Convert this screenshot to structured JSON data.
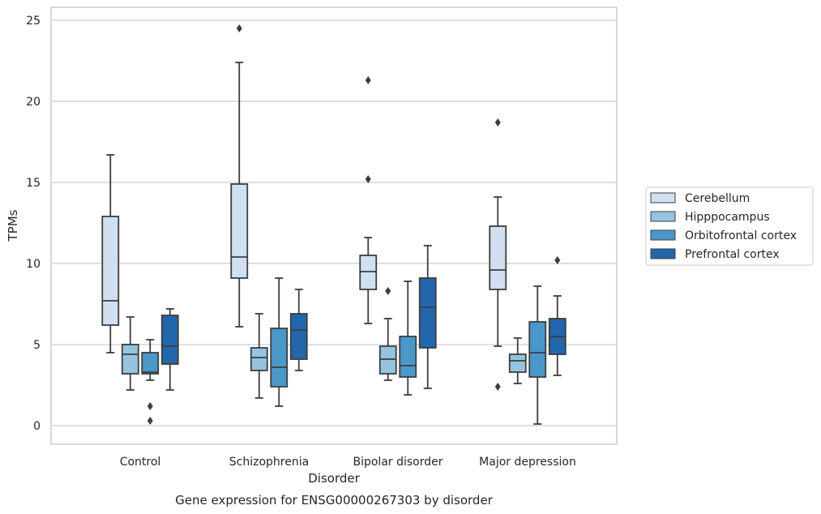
{
  "chart_data": {
    "type": "box",
    "caption": "Gene expression for ENSG00000267303 by disorder",
    "xlabel": "Disorder",
    "ylabel": "TPMs",
    "ylim": [
      -1,
      26
    ],
    "yticks": [
      "0",
      "5",
      "10",
      "15",
      "20",
      "25"
    ],
    "grid": true,
    "legend_position": "right",
    "categories": [
      "Control",
      "Schizophrenia",
      "Bipolar disorder",
      "Major depression"
    ],
    "series": [
      {
        "name": "Cerebellum",
        "color": "#d1e0f0",
        "boxes": [
          {
            "whisker_low": 4.5,
            "q1": 6.2,
            "median": 7.7,
            "q3": 12.9,
            "whisker_high": 16.7,
            "outliers": []
          },
          {
            "whisker_low": 6.1,
            "q1": 9.1,
            "median": 10.4,
            "q3": 14.9,
            "whisker_high": 22.4,
            "outliers": [
              24.5
            ]
          },
          {
            "whisker_low": 6.3,
            "q1": 8.4,
            "median": 9.5,
            "q3": 10.5,
            "whisker_high": 11.6,
            "outliers": [
              15.2,
              21.3
            ]
          },
          {
            "whisker_low": 4.9,
            "q1": 8.4,
            "median": 9.6,
            "q3": 12.3,
            "whisker_high": 14.1,
            "outliers": [
              2.4,
              18.7
            ]
          }
        ]
      },
      {
        "name": "Hipppocampus",
        "color": "#94c4df",
        "boxes": [
          {
            "whisker_low": 2.2,
            "q1": 3.2,
            "median": 4.4,
            "q3": 5.0,
            "whisker_high": 6.7,
            "outliers": []
          },
          {
            "whisker_low": 1.7,
            "q1": 3.4,
            "median": 4.2,
            "q3": 4.8,
            "whisker_high": 6.9,
            "outliers": []
          },
          {
            "whisker_low": 2.8,
            "q1": 3.2,
            "median": 4.1,
            "q3": 4.9,
            "whisker_high": 6.6,
            "outliers": [
              8.3
            ]
          },
          {
            "whisker_low": 2.6,
            "q1": 3.3,
            "median": 4.0,
            "q3": 4.4,
            "whisker_high": 5.4,
            "outliers": []
          }
        ]
      },
      {
        "name": "Orbitofrontal cortex",
        "color": "#4a98c9",
        "boxes": [
          {
            "whisker_low": 2.8,
            "q1": 3.2,
            "median": 3.3,
            "q3": 4.5,
            "whisker_high": 5.3,
            "outliers": [
              0.3,
              1.2
            ]
          },
          {
            "whisker_low": 1.2,
            "q1": 2.4,
            "median": 3.6,
            "q3": 6.0,
            "whisker_high": 9.1,
            "outliers": []
          },
          {
            "whisker_low": 1.9,
            "q1": 3.0,
            "median": 3.7,
            "q3": 5.5,
            "whisker_high": 8.9,
            "outliers": []
          },
          {
            "whisker_low": 0.1,
            "q1": 3.0,
            "median": 4.5,
            "q3": 6.4,
            "whisker_high": 8.6,
            "outliers": []
          }
        ]
      },
      {
        "name": "Prefrontal cortex",
        "color": "#2266ac",
        "boxes": [
          {
            "whisker_low": 2.2,
            "q1": 3.8,
            "median": 4.9,
            "q3": 6.8,
            "whisker_high": 7.2,
            "outliers": []
          },
          {
            "whisker_low": 3.4,
            "q1": 4.1,
            "median": 5.9,
            "q3": 6.9,
            "whisker_high": 8.4,
            "outliers": []
          },
          {
            "whisker_low": 2.3,
            "q1": 4.8,
            "median": 7.3,
            "q3": 9.1,
            "whisker_high": 11.1,
            "outliers": []
          },
          {
            "whisker_low": 3.1,
            "q1": 4.4,
            "median": 5.5,
            "q3": 6.6,
            "whisker_high": 8.0,
            "outliers": [
              10.2
            ]
          }
        ]
      }
    ]
  }
}
